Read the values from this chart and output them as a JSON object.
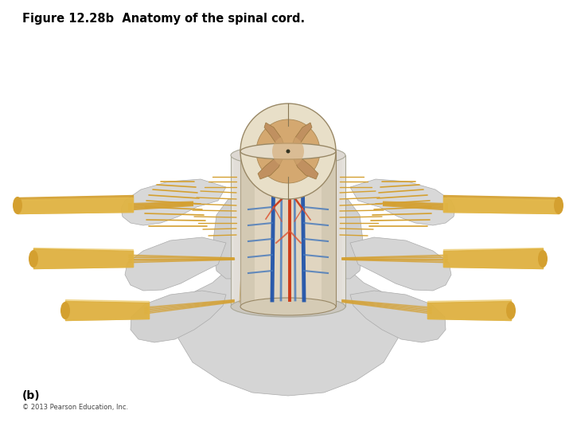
{
  "title": "Figure 12.28b  Anatomy of the spinal cord.",
  "title_fontsize": 10.5,
  "label_b": "(b)",
  "label_b_fontsize": 10,
  "copyright": "© 2013 Pearson Education, Inc.",
  "copyright_fontsize": 6,
  "background_color": "#ffffff",
  "vertebra_color": "#d8d8d8",
  "vertebra_edge": "#aaaaaa",
  "cord_white_color": "#e8dcc8",
  "cord_gray_h_color": "#c8966e",
  "cord_gray_outer": "#d4a878",
  "nerve_gold": "#d4a030",
  "nerve_yellow": "#e8c050",
  "nerve_light": "#f0d070",
  "sheath_color": "#e0ddd8",
  "sheath_lower": "#d0cdc8",
  "meninges_blue": "#c8d8e8",
  "blue_vessel": "#2255aa",
  "red_vessel": "#cc3311",
  "blue_thin": "#4477bb",
  "red_thin": "#dd5533"
}
